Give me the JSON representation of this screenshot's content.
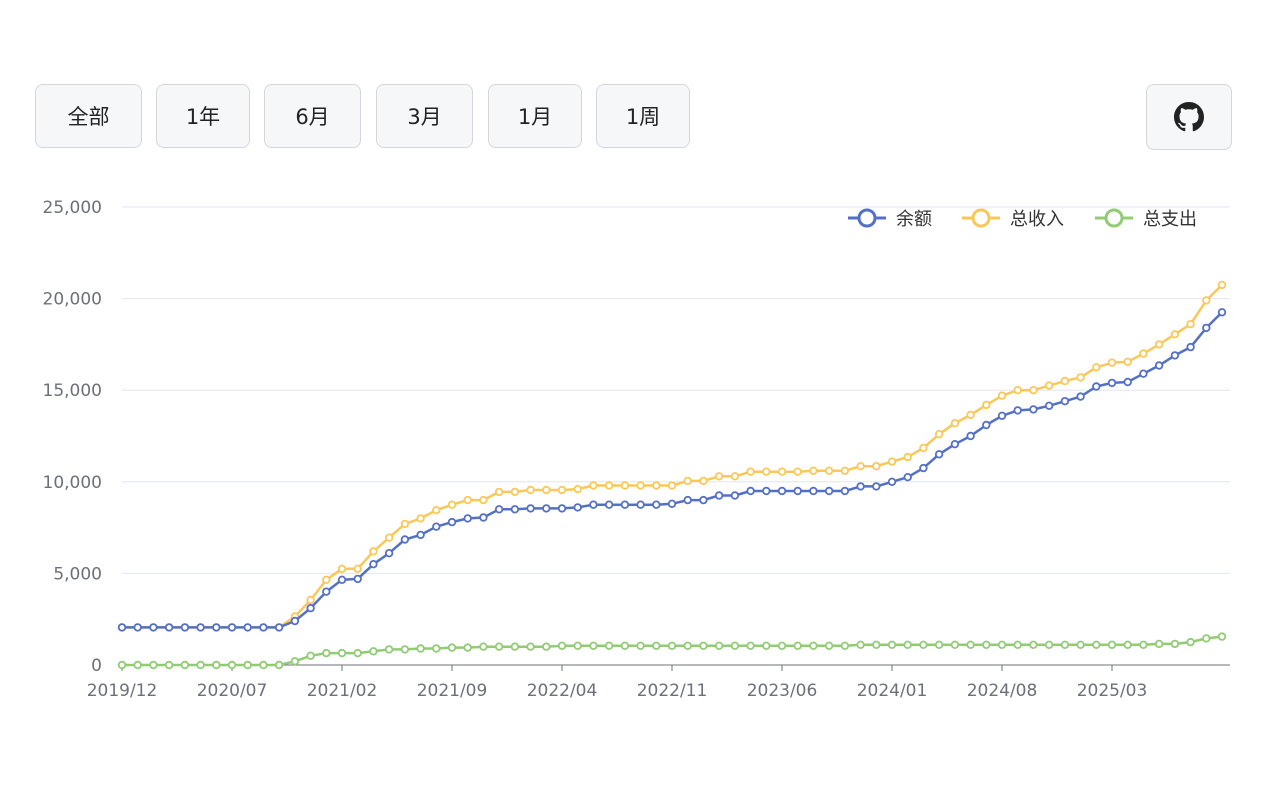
{
  "range_buttons": [
    {
      "label": "全部"
    },
    {
      "label": "1年"
    },
    {
      "label": "6月"
    },
    {
      "label": "3月"
    },
    {
      "label": "1月"
    },
    {
      "label": "1周"
    }
  ],
  "github_icon": "github-icon",
  "chart_data": {
    "type": "line",
    "ylim": [
      0,
      25000
    ],
    "y_ticks": [
      0,
      5000,
      10000,
      15000,
      20000,
      25000
    ],
    "y_tick_labels": [
      "0",
      "5,000",
      "10,000",
      "15,000",
      "20,000",
      "25,000"
    ],
    "x_tick_labels": [
      "2019/12",
      "2020/07",
      "2021/02",
      "2021/09",
      "2022/04",
      "2022/11",
      "2023/06",
      "2024/01",
      "2024/08",
      "2025/03"
    ],
    "x_label_every": 7,
    "grid": true,
    "legend_position": "top-right",
    "series": [
      {
        "name": "余额",
        "color": "#5470c6",
        "values": [
          2050,
          2050,
          2050,
          2050,
          2050,
          2050,
          2050,
          2050,
          2050,
          2050,
          2050,
          2400,
          3100,
          4000,
          4650,
          4700,
          5500,
          6100,
          6850,
          7100,
          7550,
          7800,
          8000,
          8050,
          8500,
          8500,
          8550,
          8550,
          8550,
          8600,
          8750,
          8750,
          8750,
          8750,
          8750,
          8800,
          9000,
          9000,
          9250,
          9250,
          9500,
          9500,
          9500,
          9500,
          9500,
          9500,
          9500,
          9750,
          9750,
          10000,
          10250,
          10750,
          11500,
          12050,
          12500,
          13100,
          13600,
          13900,
          13950,
          14150,
          14400,
          14650,
          15200,
          15400,
          15450,
          15900,
          16350,
          16900,
          17350,
          18400,
          19250
        ]
      },
      {
        "name": "总收入",
        "color": "#fac858",
        "values": [
          2050,
          2050,
          2050,
          2050,
          2050,
          2050,
          2050,
          2050,
          2050,
          2050,
          2050,
          2650,
          3550,
          4650,
          5250,
          5250,
          6200,
          6950,
          7700,
          8000,
          8450,
          8750,
          9000,
          9000,
          9450,
          9450,
          9550,
          9550,
          9550,
          9600,
          9800,
          9800,
          9800,
          9800,
          9800,
          9800,
          10050,
          10050,
          10300,
          10300,
          10550,
          10550,
          10550,
          10550,
          10600,
          10600,
          10600,
          10850,
          10850,
          11100,
          11350,
          11850,
          12600,
          13200,
          13650,
          14200,
          14700,
          15000,
          15000,
          15250,
          15500,
          15700,
          16250,
          16500,
          16550,
          17000,
          17500,
          18050,
          18600,
          19900,
          20750
        ]
      },
      {
        "name": "总支出",
        "color": "#91cc75",
        "values": [
          0,
          0,
          0,
          0,
          0,
          0,
          0,
          0,
          0,
          0,
          0,
          200,
          500,
          650,
          650,
          650,
          750,
          850,
          850,
          900,
          900,
          950,
          950,
          1000,
          1000,
          1000,
          1000,
          1000,
          1050,
          1050,
          1050,
          1050,
          1050,
          1050,
          1050,
          1050,
          1050,
          1050,
          1050,
          1050,
          1050,
          1050,
          1050,
          1050,
          1050,
          1050,
          1050,
          1100,
          1100,
          1100,
          1100,
          1100,
          1100,
          1100,
          1100,
          1100,
          1100,
          1100,
          1100,
          1100,
          1100,
          1100,
          1100,
          1100,
          1100,
          1100,
          1150,
          1150,
          1250,
          1450,
          1550
        ]
      }
    ]
  }
}
